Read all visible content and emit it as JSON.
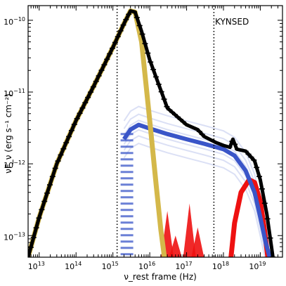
{
  "chart_data": {
    "type": "line",
    "xscale": "log",
    "yscale": "log",
    "xlim": [
      5000000000000.0,
      4e+19
    ],
    "ylim": [
      5e-14,
      1.6e-10
    ],
    "xlabel": "ν_rest frame (Hz)",
    "ylabel": "νF_ν (erg s⁻¹ cm⁻²)",
    "annotation": "KYNSED",
    "x_ticks": [
      {
        "base": "10",
        "exp": "13",
        "value": 10000000000000.0
      },
      {
        "base": "10",
        "exp": "14",
        "value": 100000000000000.0
      },
      {
        "base": "10",
        "exp": "15",
        "value": 1000000000000000.0
      },
      {
        "base": "10",
        "exp": "16",
        "value": 1e+16
      },
      {
        "base": "10",
        "exp": "17",
        "value": 1e+17
      },
      {
        "base": "10",
        "exp": "18",
        "value": 1e+18
      },
      {
        "base": "10",
        "exp": "19",
        "value": 1e+19
      }
    ],
    "y_ticks": [
      {
        "base": "10",
        "exp": "−13",
        "value": 1e-13
      },
      {
        "base": "10",
        "exp": "−12",
        "value": 1e-12
      },
      {
        "base": "10",
        "exp": "−11",
        "value": 1e-11
      },
      {
        "base": "10",
        "exp": "−10",
        "value": 1e-10
      }
    ],
    "vlines": [
      1300000000000000.0,
      5.5e+17
    ],
    "colors": {
      "total": "#000000",
      "disc": "#d4b84a",
      "corona": "#3a55c8",
      "reflection": "#ee1111",
      "vline": "#000000"
    },
    "series": [
      {
        "key": "total",
        "x": [
          5000000000000.0,
          10000000000000.0,
          30000000000000.0,
          100000000000000.0,
          300000000000000.0,
          1000000000000000.0,
          2000000000000000.0,
          3000000000000000.0,
          4000000000000000.0,
          6000000000000000.0,
          1e+16,
          3e+16,
          1e+17,
          2e+17,
          3e+17,
          6e+17,
          1e+18,
          1.5e+18,
          1.8e+18,
          2.3e+18,
          4e+18,
          7e+18,
          1e+19,
          1.5e+19,
          2.2e+19
        ],
        "y": [
          5e-14,
          1.8e-13,
          1e-12,
          4e-12,
          1.2e-11,
          4.2e-11,
          9e-11,
          1.35e-10,
          1.3e-10,
          7e-11,
          2.8e-11,
          6e-12,
          3.5e-12,
          3e-12,
          2.4e-12,
          2e-12,
          1.8e-12,
          1.7e-12,
          2.2e-12,
          1.6e-12,
          1.5e-12,
          1.1e-12,
          6e-13,
          2e-13,
          5e-14
        ]
      },
      {
        "key": "disc",
        "x": [
          5000000000000.0,
          10000000000000.0,
          30000000000000.0,
          100000000000000.0,
          300000000000000.0,
          1000000000000000.0,
          2000000000000000.0,
          3000000000000000.0,
          4000000000000000.0,
          6000000000000000.0,
          1e+16,
          1.5e+16,
          2e+16,
          2.5e+16
        ],
        "y": [
          5e-14,
          1.8e-13,
          1e-12,
          4e-12,
          1.2e-11,
          4.2e-11,
          9e-11,
          1.35e-10,
          1.3e-10,
          5e-11,
          4e-12,
          5e-13,
          1.2e-13,
          5e-14
        ]
      },
      {
        "key": "corona",
        "x": [
          2000000000000000.0,
          3000000000000000.0,
          5000000000000000.0,
          1e+16,
          3e+16,
          1e+17,
          3e+17,
          1e+18,
          2e+18,
          4e+18,
          7e+18,
          1e+19,
          1.4e+19,
          1.8e+19
        ],
        "y": [
          2.2e-12,
          3e-12,
          3.5e-12,
          3.1e-12,
          2.6e-12,
          2.2e-12,
          1.9e-12,
          1.6e-12,
          1.3e-12,
          8e-13,
          4e-13,
          1.8e-13,
          8e-14,
          5e-14
        ]
      },
      {
        "key": "reflection",
        "x": [
          1.6e+18,
          2e+18,
          3e+18,
          5e+18,
          7e+18,
          1e+19,
          1.3e+19,
          1.6e+19
        ],
        "y": [
          5e-14,
          1.5e-13,
          4e-13,
          6e-13,
          5.5e-13,
          3e-13,
          1.2e-13,
          5e-14
        ]
      }
    ]
  }
}
